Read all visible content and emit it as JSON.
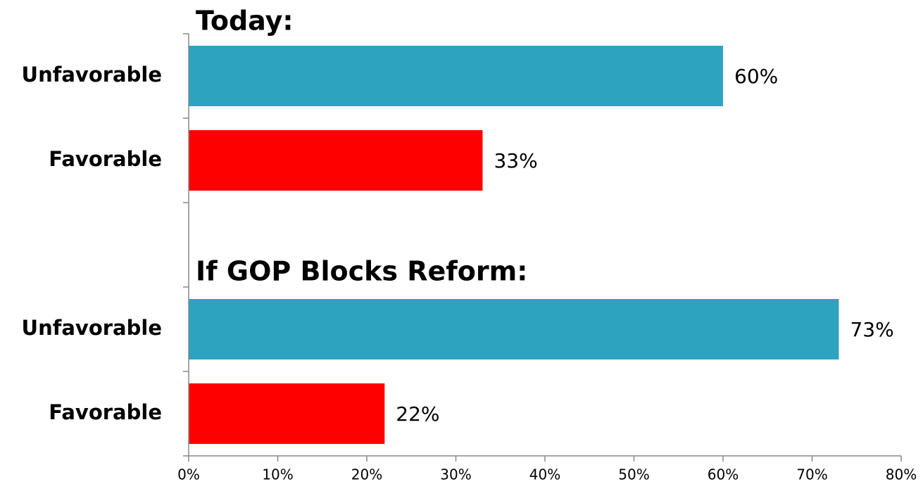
{
  "chart_data": {
    "type": "hbar",
    "groups": [
      {
        "title": "Today:",
        "categories": [
          "Unfavorable",
          "Favorable"
        ],
        "values": [
          60,
          33
        ],
        "value_labels": [
          "60%",
          "33%"
        ],
        "colors": [
          "#2ea3bf",
          "#ff0000"
        ]
      },
      {
        "title": "If GOP Blocks Reform:",
        "categories": [
          "Unfavorable",
          "Favorable"
        ],
        "values": [
          73,
          22
        ],
        "value_labels": [
          "73%",
          "22%"
        ],
        "colors": [
          "#2ea3bf",
          "#ff0000"
        ]
      }
    ],
    "xlim": [
      0,
      80
    ],
    "xticks": [
      {
        "value": 0,
        "label": "0%"
      },
      {
        "value": 10,
        "label": "10%"
      },
      {
        "value": 20,
        "label": "20%"
      },
      {
        "value": 30,
        "label": "30%"
      },
      {
        "value": 40,
        "label": "40%"
      },
      {
        "value": 50,
        "label": "50%"
      },
      {
        "value": 60,
        "label": "60%"
      },
      {
        "value": 70,
        "label": "70%"
      },
      {
        "value": 80,
        "label": "80%"
      }
    ]
  }
}
